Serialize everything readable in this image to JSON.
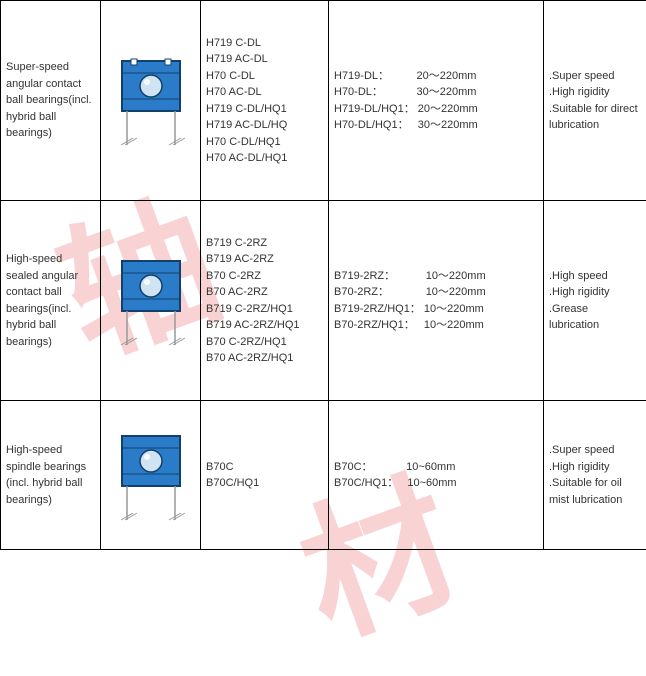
{
  "rows": [
    {
      "name": "Super-speed angular contact ball bearings(incl. hybrid ball bearings)",
      "codes": "H719 C-DL\nH719 AC-DL\nH70 C-DL\nH70 AC-DL\nH719 C-DL/HQ1\nH719 AC-DL/HQ\nH70 C-DL/HQ1\nH70 AC-DL/HQ1",
      "ranges": "H719-DL：         20～220mm\nH70-DL：           30～220mm\nH719-DL/HQ1： 20～220mm\nH70-DL/HQ1：   30～220mm",
      "features": ".Super speed\n.High rigidity\n.Suitable for direct lubrication",
      "svg": "bearing-open"
    },
    {
      "name": "High-speed sealed angular contact ball bearings(incl. hybrid ball bearings)",
      "codes": "B719 C-2RZ\nB719 AC-2RZ\nB70 C-2RZ\nB70 AC-2RZ\nB719 C-2RZ/HQ1\nB719 AC-2RZ/HQ1\nB70 C-2RZ/HQ1\nB70 AC-2RZ/HQ1",
      "ranges": "B719-2RZ：          10～220mm\nB70-2RZ：            10～220mm\nB719-2RZ/HQ1： 10～220mm\nB70-2RZ/HQ1：   10～220mm",
      "features": ".High speed\n.High rigidity\n.Grease lubrication",
      "svg": "bearing-sealed"
    },
    {
      "name": "High-speed spindle bearings (incl. hybrid ball bearings)",
      "codes": "B70C\nB70C/HQ1",
      "ranges": "B70C：           10~60mm\nB70C/HQ1：   10~60mm",
      "features": ".Super speed\n.High rigidity\n.Suitable for oil mist lubrication",
      "svg": "bearing-spindle"
    }
  ],
  "colors": {
    "bearing_fill": "#2a7cc8",
    "bearing_stroke": "#11406c",
    "ball_light": "#cfe3f3",
    "hatch": "#999"
  }
}
